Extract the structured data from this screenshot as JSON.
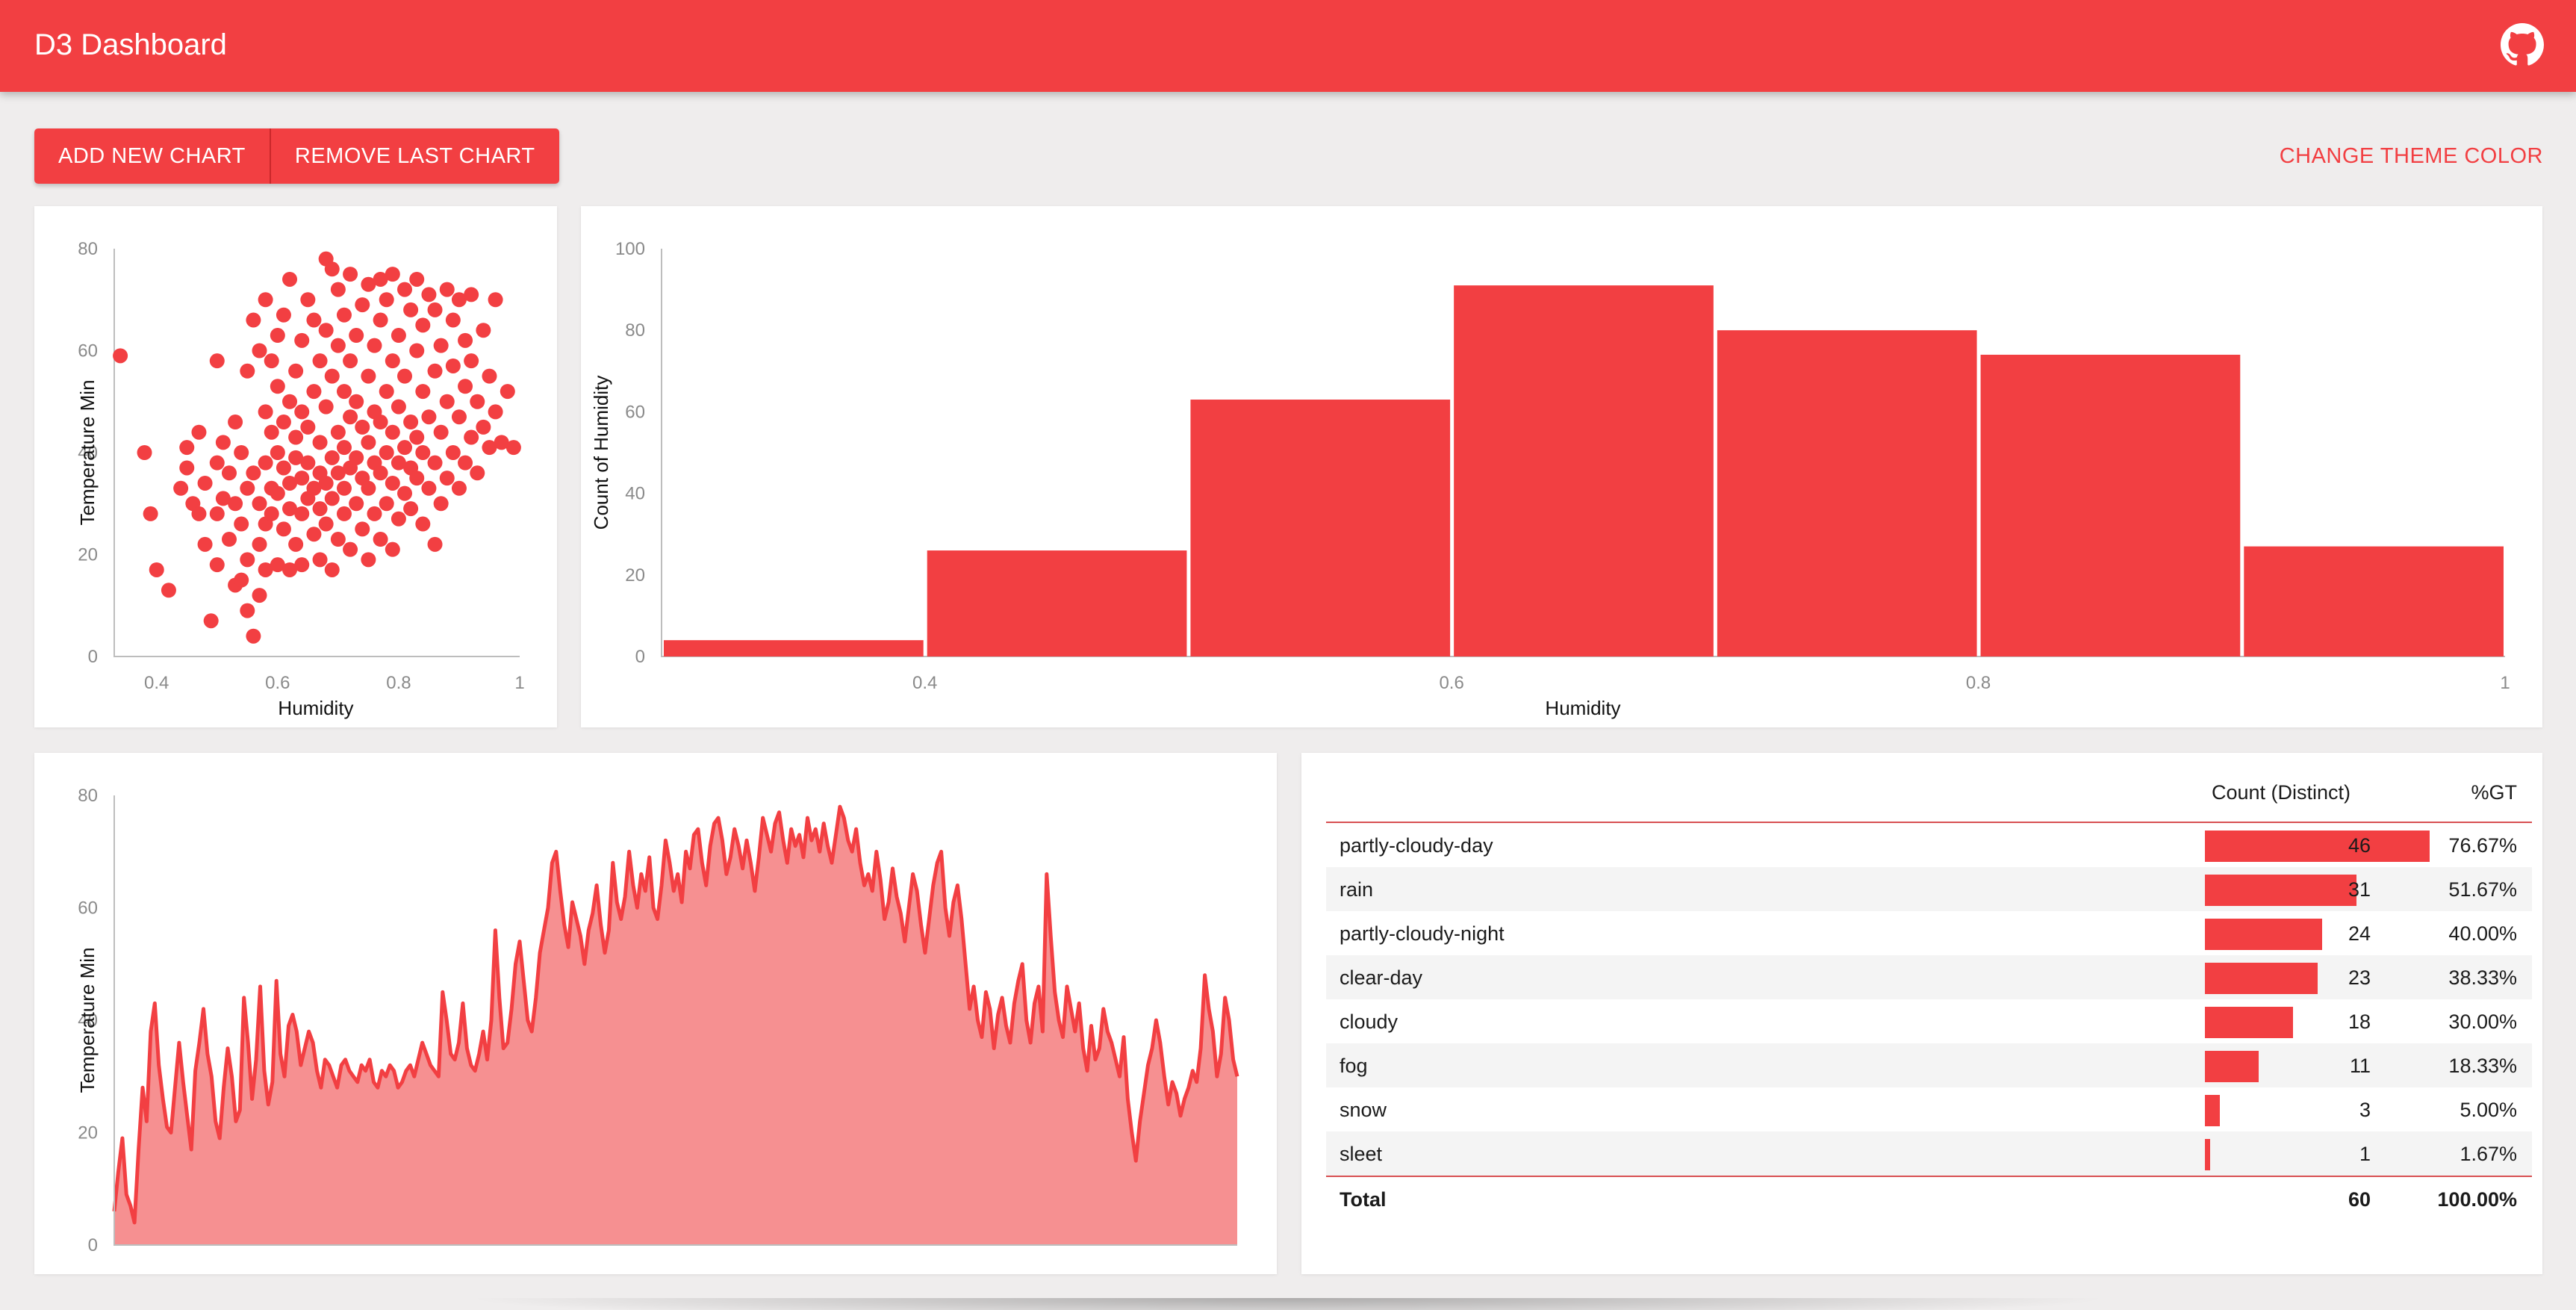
{
  "app": {
    "title": "D3 Dashboard",
    "github_icon": "github-icon"
  },
  "toolbar": {
    "add_label": "ADD NEW CHART",
    "remove_label": "REMOVE LAST CHART",
    "theme_label": "CHANGE THEME COLOR"
  },
  "colors": {
    "accent": "#f23f42",
    "area_fill": "#f69091",
    "background": "#efeded"
  },
  "charts": {
    "scatter": {
      "xlabel": "Humidity",
      "ylabel": "Temperature Min",
      "xticks": [
        "0.4",
        "0.6",
        "0.8",
        "1"
      ],
      "yticks": [
        "0",
        "20",
        "40",
        "60",
        "80"
      ]
    },
    "histogram": {
      "xlabel": "Humidity",
      "ylabel": "Count of Humidity",
      "xticks": [
        "0.4",
        "0.6",
        "0.8",
        "1"
      ],
      "yticks": [
        "0",
        "20",
        "40",
        "60",
        "80",
        "100"
      ]
    },
    "area": {
      "ylabel": "Temperature Min",
      "yticks": [
        "0",
        "20",
        "40",
        "60",
        "80"
      ]
    }
  },
  "table": {
    "headers": {
      "count": "Count (Distinct)",
      "pct": "%GT"
    },
    "rows": [
      {
        "label": "partly-cloudy-day",
        "count": "46",
        "pct": "76.67%"
      },
      {
        "label": "rain",
        "count": "31",
        "pct": "51.67%"
      },
      {
        "label": "partly-cloudy-night",
        "count": "24",
        "pct": "40.00%"
      },
      {
        "label": "clear-day",
        "count": "23",
        "pct": "38.33%"
      },
      {
        "label": "cloudy",
        "count": "18",
        "pct": "30.00%"
      },
      {
        "label": "fog",
        "count": "11",
        "pct": "18.33%"
      },
      {
        "label": "snow",
        "count": "3",
        "pct": "5.00%"
      },
      {
        "label": "sleet",
        "count": "1",
        "pct": "1.67%"
      }
    ],
    "total": {
      "label": "Total",
      "count": "60",
      "pct": "100.00%"
    }
  },
  "chart_data": [
    {
      "type": "scatter",
      "xlabel": "Humidity",
      "ylabel": "Temperature Min",
      "xlim": [
        0.33,
        1.0
      ],
      "ylim": [
        0,
        80
      ],
      "points": [
        [
          0.34,
          59
        ],
        [
          0.38,
          40
        ],
        [
          0.39,
          28
        ],
        [
          0.4,
          17
        ],
        [
          0.42,
          13
        ],
        [
          0.44,
          33
        ],
        [
          0.45,
          37
        ],
        [
          0.45,
          41
        ],
        [
          0.46,
          30
        ],
        [
          0.47,
          28
        ],
        [
          0.47,
          44
        ],
        [
          0.48,
          22
        ],
        [
          0.48,
          34
        ],
        [
          0.49,
          7
        ],
        [
          0.5,
          18
        ],
        [
          0.5,
          28
        ],
        [
          0.5,
          38
        ],
        [
          0.5,
          58
        ],
        [
          0.51,
          31
        ],
        [
          0.51,
          42
        ],
        [
          0.52,
          23
        ],
        [
          0.52,
          36
        ],
        [
          0.53,
          14
        ],
        [
          0.53,
          30
        ],
        [
          0.53,
          46
        ],
        [
          0.54,
          15
        ],
        [
          0.54,
          26
        ],
        [
          0.54,
          40
        ],
        [
          0.55,
          9
        ],
        [
          0.55,
          19
        ],
        [
          0.55,
          33
        ],
        [
          0.55,
          56
        ],
        [
          0.56,
          4
        ],
        [
          0.56,
          36
        ],
        [
          0.56,
          66
        ],
        [
          0.57,
          12
        ],
        [
          0.57,
          22
        ],
        [
          0.57,
          30
        ],
        [
          0.57,
          60
        ],
        [
          0.58,
          17
        ],
        [
          0.58,
          26
        ],
        [
          0.58,
          38
        ],
        [
          0.58,
          48
        ],
        [
          0.58,
          70
        ],
        [
          0.59,
          28
        ],
        [
          0.59,
          33
        ],
        [
          0.59,
          44
        ],
        [
          0.59,
          58
        ],
        [
          0.6,
          18
        ],
        [
          0.6,
          32
        ],
        [
          0.6,
          40
        ],
        [
          0.6,
          53
        ],
        [
          0.6,
          63
        ],
        [
          0.61,
          25
        ],
        [
          0.61,
          37
        ],
        [
          0.61,
          46
        ],
        [
          0.61,
          67
        ],
        [
          0.62,
          17
        ],
        [
          0.62,
          29
        ],
        [
          0.62,
          34
        ],
        [
          0.62,
          50
        ],
        [
          0.62,
          74
        ],
        [
          0.63,
          22
        ],
        [
          0.63,
          39
        ],
        [
          0.63,
          43
        ],
        [
          0.63,
          56
        ],
        [
          0.64,
          18
        ],
        [
          0.64,
          28
        ],
        [
          0.64,
          35
        ],
        [
          0.64,
          48
        ],
        [
          0.64,
          62
        ],
        [
          0.65,
          31
        ],
        [
          0.65,
          38
        ],
        [
          0.65,
          45
        ],
        [
          0.65,
          70
        ],
        [
          0.66,
          24
        ],
        [
          0.66,
          33
        ],
        [
          0.66,
          52
        ],
        [
          0.66,
          66
        ],
        [
          0.67,
          19
        ],
        [
          0.67,
          29
        ],
        [
          0.67,
          36
        ],
        [
          0.67,
          42
        ],
        [
          0.67,
          58
        ],
        [
          0.68,
          26
        ],
        [
          0.68,
          34
        ],
        [
          0.68,
          49
        ],
        [
          0.68,
          64
        ],
        [
          0.68,
          78
        ],
        [
          0.69,
          17
        ],
        [
          0.69,
          31
        ],
        [
          0.69,
          39
        ],
        [
          0.69,
          55
        ],
        [
          0.69,
          76
        ],
        [
          0.7,
          23
        ],
        [
          0.7,
          36
        ],
        [
          0.7,
          44
        ],
        [
          0.7,
          61
        ],
        [
          0.7,
          72
        ],
        [
          0.71,
          28
        ],
        [
          0.71,
          33
        ],
        [
          0.71,
          41
        ],
        [
          0.71,
          52
        ],
        [
          0.71,
          67
        ],
        [
          0.72,
          21
        ],
        [
          0.72,
          37
        ],
        [
          0.72,
          47
        ],
        [
          0.72,
          58
        ],
        [
          0.72,
          75
        ],
        [
          0.73,
          30
        ],
        [
          0.73,
          39
        ],
        [
          0.73,
          50
        ],
        [
          0.73,
          63
        ],
        [
          0.74,
          25
        ],
        [
          0.74,
          35
        ],
        [
          0.74,
          45
        ],
        [
          0.74,
          69
        ],
        [
          0.75,
          19
        ],
        [
          0.75,
          33
        ],
        [
          0.75,
          42
        ],
        [
          0.75,
          55
        ],
        [
          0.75,
          73
        ],
        [
          0.76,
          28
        ],
        [
          0.76,
          38
        ],
        [
          0.76,
          48
        ],
        [
          0.76,
          61
        ],
        [
          0.77,
          23
        ],
        [
          0.77,
          36
        ],
        [
          0.77,
          46
        ],
        [
          0.77,
          66
        ],
        [
          0.77,
          74
        ],
        [
          0.78,
          30
        ],
        [
          0.78,
          40
        ],
        [
          0.78,
          52
        ],
        [
          0.78,
          70
        ],
        [
          0.79,
          21
        ],
        [
          0.79,
          34
        ],
        [
          0.79,
          44
        ],
        [
          0.79,
          58
        ],
        [
          0.79,
          75
        ],
        [
          0.8,
          27
        ],
        [
          0.8,
          38
        ],
        [
          0.8,
          49
        ],
        [
          0.8,
          63
        ],
        [
          0.81,
          32
        ],
        [
          0.81,
          41
        ],
        [
          0.81,
          55
        ],
        [
          0.81,
          72
        ],
        [
          0.82,
          29
        ],
        [
          0.82,
          37
        ],
        [
          0.82,
          46
        ],
        [
          0.82,
          68
        ],
        [
          0.83,
          35
        ],
        [
          0.83,
          43
        ],
        [
          0.83,
          60
        ],
        [
          0.83,
          74
        ],
        [
          0.84,
          26
        ],
        [
          0.84,
          40
        ],
        [
          0.84,
          52
        ],
        [
          0.84,
          65
        ],
        [
          0.85,
          33
        ],
        [
          0.85,
          47
        ],
        [
          0.85,
          71
        ],
        [
          0.86,
          22
        ],
        [
          0.86,
          38
        ],
        [
          0.86,
          56
        ],
        [
          0.86,
          68
        ],
        [
          0.87,
          30
        ],
        [
          0.87,
          44
        ],
        [
          0.87,
          61
        ],
        [
          0.88,
          35
        ],
        [
          0.88,
          50
        ],
        [
          0.88,
          72
        ],
        [
          0.89,
          40
        ],
        [
          0.89,
          57
        ],
        [
          0.89,
          66
        ],
        [
          0.9,
          33
        ],
        [
          0.9,
          47
        ],
        [
          0.9,
          70
        ],
        [
          0.91,
          38
        ],
        [
          0.91,
          53
        ],
        [
          0.91,
          62
        ],
        [
          0.92,
          43
        ],
        [
          0.92,
          58
        ],
        [
          0.92,
          71
        ],
        [
          0.93,
          36
        ],
        [
          0.93,
          50
        ],
        [
          0.94,
          45
        ],
        [
          0.94,
          64
        ],
        [
          0.95,
          41
        ],
        [
          0.95,
          55
        ],
        [
          0.96,
          48
        ],
        [
          0.96,
          70
        ],
        [
          0.97,
          42
        ],
        [
          0.98,
          52
        ],
        [
          0.99,
          41
        ]
      ]
    },
    {
      "type": "bar",
      "xlabel": "Humidity",
      "ylabel": "Count of Humidity",
      "bins": [
        [
          0.3,
          0.4
        ],
        [
          0.4,
          0.5
        ],
        [
          0.5,
          0.6
        ],
        [
          0.6,
          0.7
        ],
        [
          0.7,
          0.8
        ],
        [
          0.8,
          0.9
        ],
        [
          0.9,
          1.0
        ]
      ],
      "values": [
        4,
        26,
        63,
        91,
        80,
        74,
        27
      ],
      "xlim": [
        0.3,
        1.0
      ],
      "ylim": [
        0,
        100
      ]
    },
    {
      "type": "area",
      "ylabel": "Temperature Min",
      "ylim": [
        0,
        80
      ],
      "values": [
        6,
        13,
        19,
        9,
        7,
        4,
        17,
        28,
        22,
        38,
        43,
        32,
        26,
        21,
        20,
        28,
        36,
        29,
        23,
        17,
        31,
        36,
        42,
        34,
        30,
        22,
        19,
        28,
        35,
        30,
        22,
        24,
        44,
        36,
        26,
        33,
        46,
        31,
        25,
        29,
        47,
        34,
        30,
        39,
        41,
        38,
        32,
        35,
        38,
        36,
        31,
        28,
        33,
        32,
        30,
        28,
        32,
        33,
        31,
        30,
        29,
        32,
        31,
        33,
        29,
        28,
        31,
        30,
        32,
        31,
        28,
        29,
        31,
        32,
        30,
        33,
        36,
        34,
        32,
        31,
        30,
        45,
        40,
        34,
        33,
        36,
        43,
        35,
        32,
        31,
        34,
        38,
        33,
        40,
        56,
        44,
        35,
        36,
        42,
        50,
        54,
        47,
        40,
        38,
        44,
        52,
        56,
        60,
        68,
        70,
        63,
        57,
        53,
        61,
        58,
        55,
        50,
        56,
        59,
        64,
        57,
        52,
        56,
        68,
        61,
        58,
        62,
        70,
        64,
        60,
        66,
        63,
        69,
        60,
        58,
        64,
        72,
        68,
        63,
        66,
        61,
        70,
        67,
        73,
        74,
        68,
        64,
        71,
        75,
        76,
        72,
        66,
        69,
        74,
        71,
        67,
        72,
        68,
        63,
        69,
        76,
        73,
        70,
        75,
        77,
        72,
        68,
        74,
        71,
        73,
        69,
        76,
        72,
        74,
        70,
        75,
        71,
        68,
        73,
        78,
        76,
        72,
        70,
        74,
        68,
        64,
        66,
        63,
        70,
        65,
        58,
        61,
        67,
        62,
        59,
        54,
        60,
        66,
        63,
        57,
        52,
        58,
        64,
        68,
        70,
        60,
        55,
        61,
        64,
        58,
        50,
        42,
        46,
        40,
        37,
        45,
        42,
        35,
        41,
        44,
        39,
        36,
        43,
        47,
        50,
        40,
        36,
        43,
        46,
        38,
        66,
        55,
        45,
        40,
        37,
        46,
        42,
        38,
        43,
        35,
        31,
        39,
        33,
        35,
        42,
        38,
        36,
        33,
        30,
        37,
        26,
        20,
        15,
        22,
        27,
        32,
        35,
        40,
        36,
        30,
        25,
        29,
        27,
        23,
        26,
        28,
        31,
        29,
        35,
        48,
        42,
        38,
        30,
        34,
        44,
        40,
        33,
        30
      ]
    },
    {
      "type": "table",
      "columns": [
        "",
        "Count (Distinct)",
        "%GT"
      ],
      "rows": [
        [
          "partly-cloudy-day",
          46,
          "76.67%"
        ],
        [
          "rain",
          31,
          "51.67%"
        ],
        [
          "partly-cloudy-night",
          24,
          "40.00%"
        ],
        [
          "clear-day",
          23,
          "38.33%"
        ],
        [
          "cloudy",
          18,
          "30.00%"
        ],
        [
          "fog",
          11,
          "18.33%"
        ],
        [
          "snow",
          3,
          "5.00%"
        ],
        [
          "sleet",
          1,
          "1.67%"
        ]
      ],
      "total": [
        "Total",
        60,
        "100.00%"
      ]
    }
  ]
}
